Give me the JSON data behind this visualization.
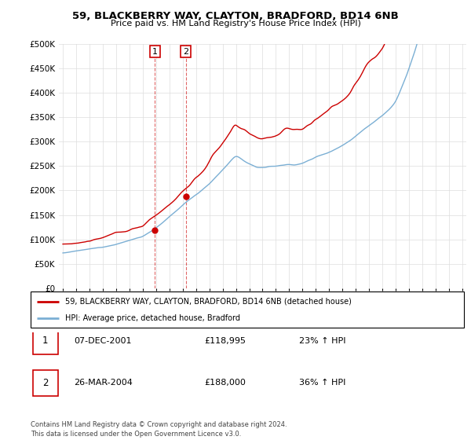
{
  "title": "59, BLACKBERRY WAY, CLAYTON, BRADFORD, BD14 6NB",
  "subtitle": "Price paid vs. HM Land Registry's House Price Index (HPI)",
  "ylim": [
    0,
    500000
  ],
  "yticks": [
    0,
    50000,
    100000,
    150000,
    200000,
    250000,
    300000,
    350000,
    400000,
    450000,
    500000
  ],
  "xlim_start": 1994.7,
  "xlim_end": 2025.3,
  "sale1_x": 2001.92,
  "sale1_y": 118995,
  "sale2_x": 2004.23,
  "sale2_y": 188000,
  "legend_line1": "59, BLACKBERRY WAY, CLAYTON, BRADFORD, BD14 6NB (detached house)",
  "legend_line2": "HPI: Average price, detached house, Bradford",
  "row1_date": "07-DEC-2001",
  "row1_price": "£118,995",
  "row1_hpi": "23% ↑ HPI",
  "row2_date": "26-MAR-2004",
  "row2_price": "£188,000",
  "row2_hpi": "36% ↑ HPI",
  "footer": "Contains HM Land Registry data © Crown copyright and database right 2024.\nThis data is licensed under the Open Government Licence v3.0.",
  "line_color_red": "#CC0000",
  "line_color_blue": "#7BAFD4",
  "grid_color": "#DDDDDD",
  "fig_width": 6.0,
  "fig_height": 5.6,
  "dpi": 100
}
